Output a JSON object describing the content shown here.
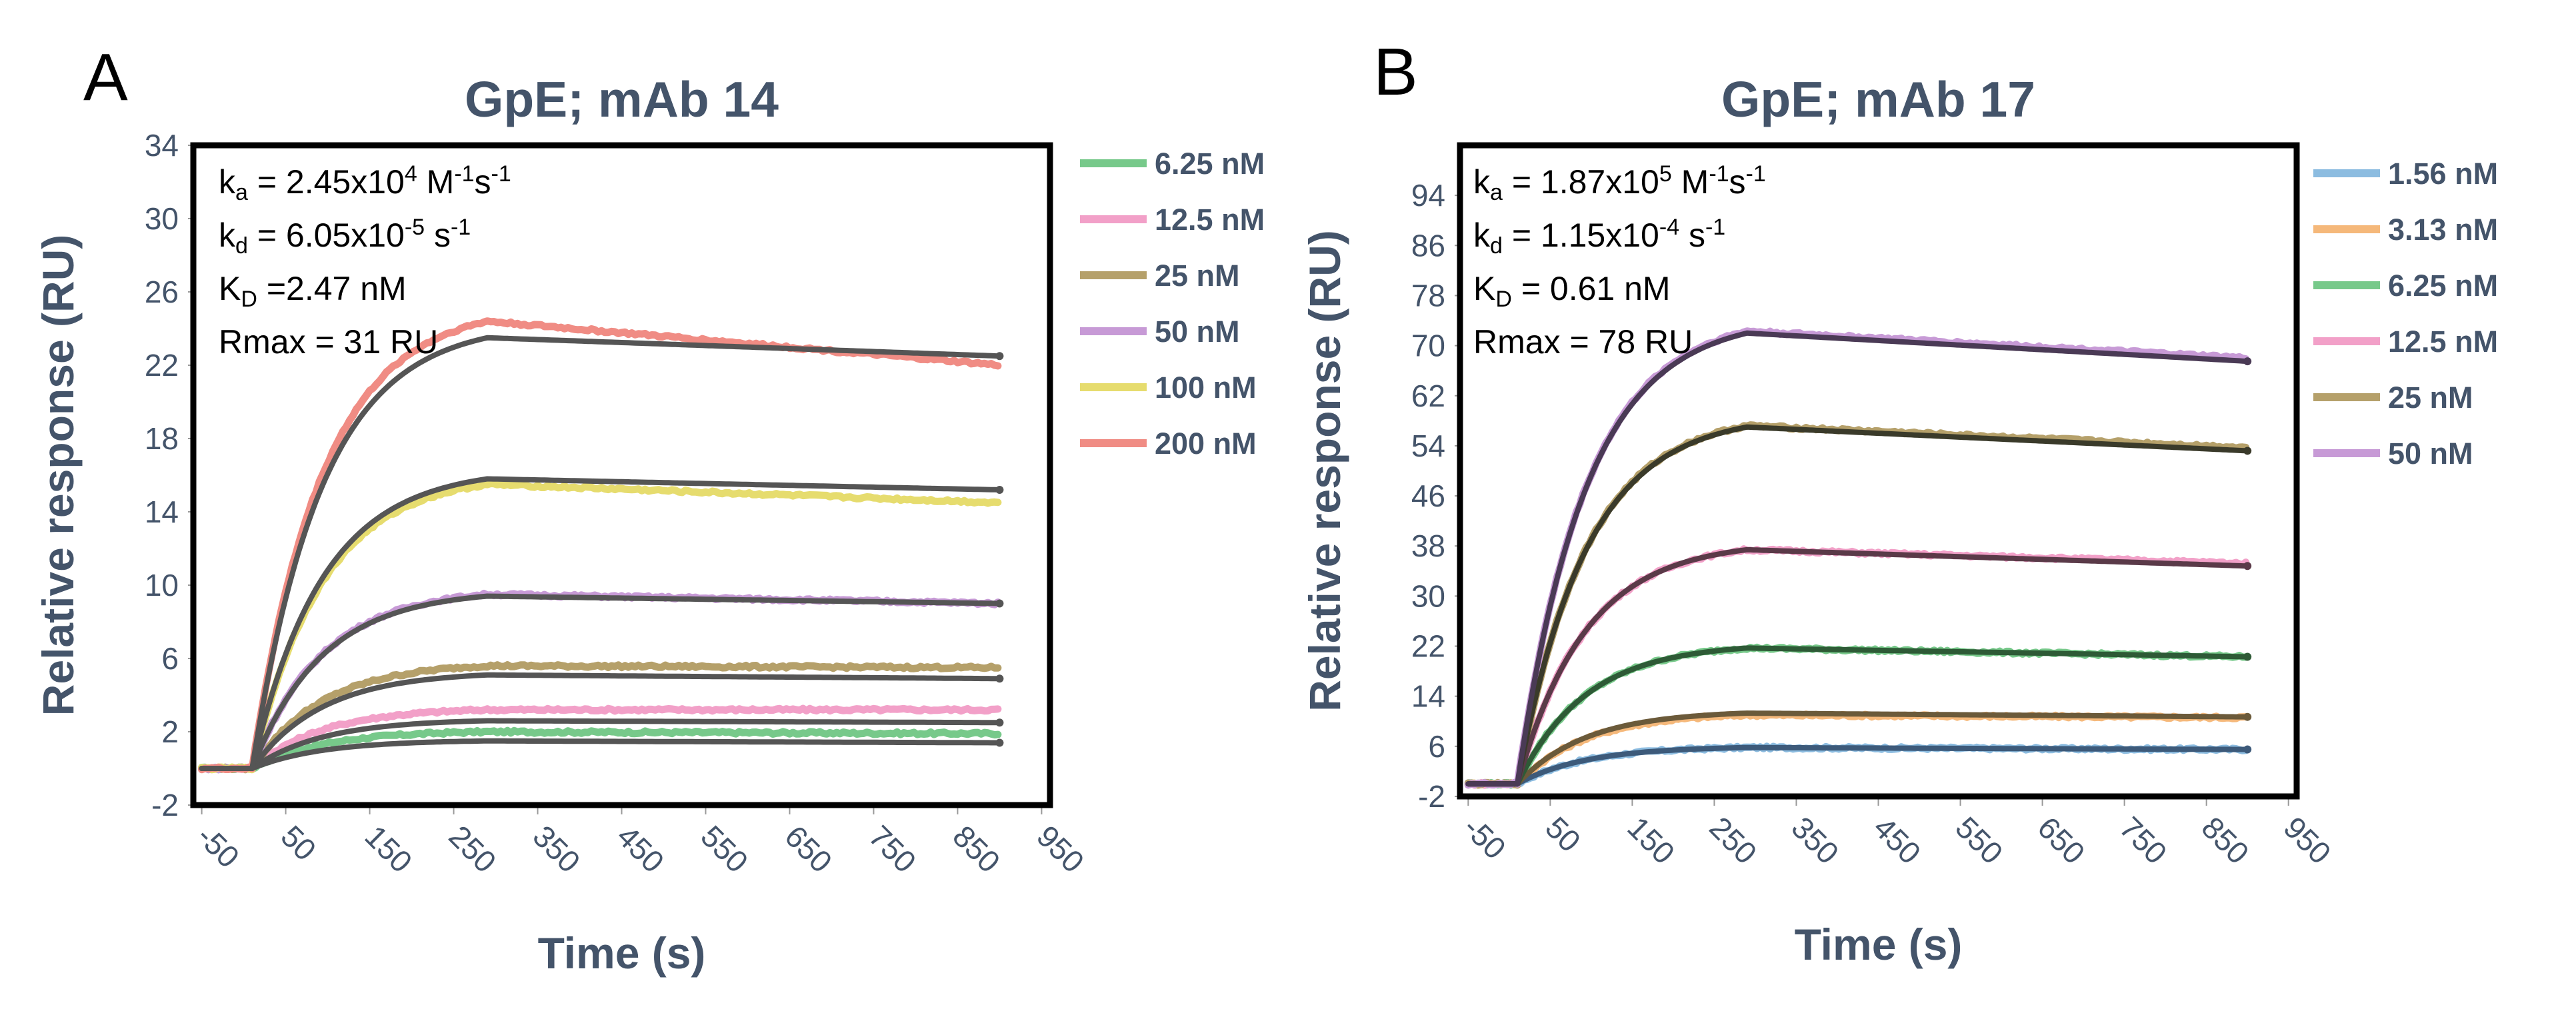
{
  "chart_data": [
    {
      "panel": "A",
      "type": "line",
      "title": "GpE; mAb 14",
      "xlabel": "Time (s)",
      "ylabel": "Relative response (RU)",
      "xlim": [
        -60,
        960
      ],
      "ylim": [
        -2,
        34
      ],
      "xticks": [
        -50,
        50,
        150,
        250,
        350,
        450,
        550,
        650,
        750,
        850,
        950
      ],
      "yticks": [
        -2,
        2,
        6,
        10,
        14,
        18,
        22,
        26,
        30,
        34
      ],
      "association_end": 290,
      "dissociation_end": 900,
      "baseline_start": -50,
      "injection_start": 10,
      "annotations": {
        "ka": {
          "main": "k",
          "sub": "a",
          "text": " = 2.45x10",
          "sup": "4",
          "unit1": " M",
          "sup2": "-1",
          "unit2": "s",
          "sup3": "-1"
        },
        "kd": {
          "main": "k",
          "sub": "d",
          "text": " = 6.05x10",
          "sup": "-5",
          "unit1": " s",
          "sup2": "-1"
        },
        "KD": {
          "main": "K",
          "sub": "D",
          "text": " =2.47 nM"
        },
        "rmax": "Rmax = 31 RU"
      },
      "fit_color": "#555555",
      "series": [
        {
          "name": "6.25 nM",
          "color": "#77c98a",
          "peak": 2.0,
          "end": 1.9,
          "fit_peak": 1.5,
          "fit_end": 1.4
        },
        {
          "name": "12.5 nM",
          "color": "#f2a0c8",
          "peak": 3.2,
          "end": 3.2,
          "fit_peak": 2.6,
          "fit_end": 2.5
        },
        {
          "name": "25 nM",
          "color": "#b5a06a",
          "peak": 5.6,
          "end": 5.5,
          "fit_peak": 5.1,
          "fit_end": 4.9
        },
        {
          "name": "50 nM",
          "color": "#c79ad6",
          "peak": 9.5,
          "end": 9.0,
          "fit_peak": 9.4,
          "fit_end": 9.0
        },
        {
          "name": "100 nM",
          "color": "#e6dc6e",
          "peak": 15.5,
          "end": 14.5,
          "fit_peak": 15.8,
          "fit_end": 15.2
        },
        {
          "name": "200 nM",
          "color": "#f08c84",
          "peak": 24.4,
          "end": 22.0,
          "fit_peak": 23.5,
          "fit_end": 22.5
        }
      ]
    },
    {
      "panel": "B",
      "type": "line",
      "title": "GpE; mAb 17",
      "xlabel": "Time (s)",
      "ylabel": "Relative response (RU)",
      "xlim": [
        -60,
        960
      ],
      "ylim": [
        -2,
        102
      ],
      "xticks": [
        -50,
        50,
        150,
        250,
        350,
        450,
        550,
        650,
        750,
        850,
        950
      ],
      "yticks": [
        -2,
        6,
        14,
        22,
        30,
        38,
        46,
        54,
        62,
        70,
        78,
        86,
        94
      ],
      "association_end": 290,
      "dissociation_end": 900,
      "baseline_start": -50,
      "injection_start": 10,
      "annotations": {
        "ka": {
          "main": "k",
          "sub": "a",
          "text": " = 1.87x10",
          "sup": "5",
          "unit1": " M",
          "sup2": "-1",
          "unit2": "s",
          "sup3": "-1"
        },
        "kd": {
          "main": "k",
          "sub": "d",
          "text": " = 1.15x10",
          "sup": "-4",
          "unit1": " s",
          "sup2": "-1"
        },
        "KD": {
          "main": "K",
          "sub": "D",
          "text": " = 0.61 nM"
        },
        "rmax": "Rmax = 78 RU"
      },
      "fit_color": "#555555",
      "series": [
        {
          "name": "1.56 nM",
          "color": "#8cbce0",
          "peak": 5.8,
          "end": 5.5,
          "fit_peak": 5.8,
          "fit_end": 5.5,
          "fit_color": "#3d5a7a"
        },
        {
          "name": "3.13 nM",
          "color": "#f5b87a",
          "peak": 11.0,
          "end": 10.6,
          "fit_peak": 11.3,
          "fit_end": 10.7,
          "fit_color": "#6b5a3a"
        },
        {
          "name": "6.25 nM",
          "color": "#77c98a",
          "peak": 21.7,
          "end": 20.3,
          "fit_peak": 21.7,
          "fit_end": 20.3,
          "fit_color": "#2e5a36"
        },
        {
          "name": "12.5 nM",
          "color": "#f2a0c8",
          "peak": 37.4,
          "end": 35.2,
          "fit_peak": 37.4,
          "fit_end": 34.8,
          "fit_color": "#5a3a48"
        },
        {
          "name": "25 nM",
          "color": "#b5a06a",
          "peak": 57.2,
          "end": 53.7,
          "fit_peak": 57.0,
          "fit_end": 53.2,
          "fit_color": "#3a3a2a"
        },
        {
          "name": "50 nM",
          "color": "#c79ad6",
          "peak": 72.3,
          "end": 68.0,
          "fit_peak": 72.0,
          "fit_end": 67.5,
          "fit_color": "#4a3a55"
        }
      ]
    }
  ]
}
